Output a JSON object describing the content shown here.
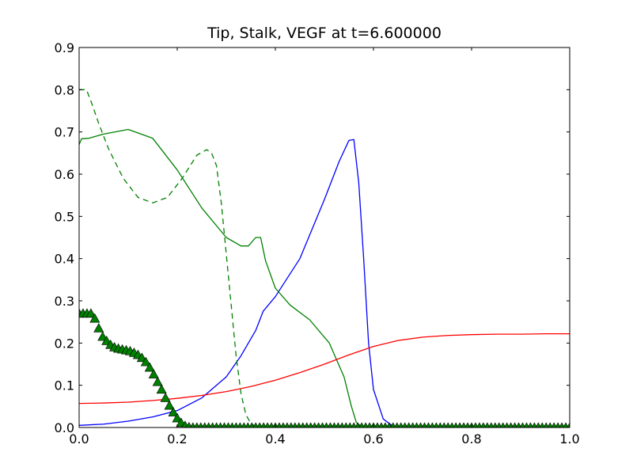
{
  "chart_data": {
    "type": "line",
    "title": "Tip, Stalk, VEGF at t=6.600000",
    "xlabel": "",
    "ylabel": "",
    "xlim": [
      0.0,
      1.0
    ],
    "ylim": [
      0.0,
      0.9
    ],
    "x_ticks": [
      "0.0",
      "0.2",
      "0.4",
      "0.6",
      "0.8",
      "1.0"
    ],
    "y_ticks": [
      "0.0",
      "0.1",
      "0.2",
      "0.3",
      "0.4",
      "0.5",
      "0.6",
      "0.7",
      "0.8",
      "0.9"
    ],
    "grid": false,
    "legend": "none",
    "series": [
      {
        "color": "#0000ff",
        "style": "solid",
        "x": [
          0.0,
          0.05,
          0.1,
          0.15,
          0.2,
          0.25,
          0.3,
          0.33,
          0.36,
          0.375,
          0.4,
          0.45,
          0.5,
          0.53,
          0.55,
          0.56,
          0.57,
          0.58,
          0.59,
          0.6,
          0.62,
          0.64,
          0.66,
          0.7,
          0.8,
          0.9,
          1.0
        ],
        "y": [
          0.005,
          0.008,
          0.015,
          0.025,
          0.04,
          0.07,
          0.12,
          0.17,
          0.23,
          0.275,
          0.31,
          0.4,
          0.54,
          0.63,
          0.68,
          0.682,
          0.58,
          0.4,
          0.2,
          0.09,
          0.02,
          0.003,
          0.0,
          0.0,
          0.0,
          0.0,
          0.0
        ]
      },
      {
        "color": "#008000",
        "style": "solid",
        "x": [
          0.0,
          0.005,
          0.02,
          0.05,
          0.1,
          0.15,
          0.2,
          0.25,
          0.3,
          0.33,
          0.345,
          0.36,
          0.37,
          0.38,
          0.4,
          0.43,
          0.47,
          0.51,
          0.54,
          0.555,
          0.565,
          0.575,
          0.6,
          0.7,
          0.8,
          0.9,
          1.0
        ],
        "y": [
          0.67,
          0.684,
          0.685,
          0.695,
          0.706,
          0.685,
          0.61,
          0.52,
          0.45,
          0.43,
          0.43,
          0.45,
          0.45,
          0.395,
          0.33,
          0.29,
          0.255,
          0.2,
          0.12,
          0.05,
          0.012,
          0.003,
          0.0,
          0.0,
          0.0,
          0.0,
          0.0
        ]
      },
      {
        "color": "#008000",
        "style": "dashed",
        "x": [
          0.0,
          0.015,
          0.025,
          0.04,
          0.06,
          0.09,
          0.12,
          0.15,
          0.18,
          0.21,
          0.24,
          0.26,
          0.27,
          0.28,
          0.29,
          0.3,
          0.31,
          0.32,
          0.33,
          0.34,
          0.35,
          0.36,
          0.37
        ],
        "y": [
          0.8,
          0.8,
          0.77,
          0.72,
          0.66,
          0.59,
          0.545,
          0.532,
          0.545,
          0.59,
          0.645,
          0.658,
          0.65,
          0.62,
          0.53,
          0.41,
          0.29,
          0.17,
          0.08,
          0.03,
          0.01,
          0.002,
          0.0
        ]
      },
      {
        "color": "#ff0000",
        "style": "solid",
        "x": [
          0.0,
          0.05,
          0.1,
          0.15,
          0.2,
          0.25,
          0.3,
          0.35,
          0.4,
          0.45,
          0.5,
          0.55,
          0.6,
          0.65,
          0.7,
          0.75,
          0.8,
          0.85,
          0.9,
          0.95,
          1.0
        ],
        "y": [
          0.057,
          0.058,
          0.06,
          0.064,
          0.069,
          0.076,
          0.085,
          0.097,
          0.112,
          0.13,
          0.15,
          0.172,
          0.192,
          0.206,
          0.214,
          0.218,
          0.22,
          0.221,
          0.221,
          0.222,
          0.222
        ]
      },
      {
        "color": "#008000",
        "style": "markers",
        "marker": "triangle",
        "x": [
          0.0,
          0.008,
          0.016,
          0.024,
          0.032,
          0.04,
          0.048,
          0.056,
          0.064,
          0.072,
          0.08,
          0.088,
          0.096,
          0.104,
          0.112,
          0.12,
          0.128,
          0.136,
          0.144,
          0.152,
          0.16,
          0.168,
          0.176,
          0.184,
          0.192,
          0.2,
          0.208,
          0.216,
          0.224,
          0.232,
          0.24,
          0.248,
          0.256,
          0.264,
          0.272,
          0.28,
          0.288,
          0.296,
          0.304,
          0.312,
          0.32,
          0.328,
          0.336,
          0.344,
          0.352,
          0.36,
          0.368,
          0.376,
          0.384,
          0.392,
          0.4,
          0.408,
          0.416,
          0.424,
          0.432,
          0.44,
          0.448,
          0.456,
          0.464,
          0.472,
          0.48,
          0.488,
          0.496,
          0.504,
          0.512,
          0.52,
          0.528,
          0.536,
          0.544,
          0.552,
          0.56,
          0.568,
          0.576,
          0.584,
          0.592,
          0.6,
          0.608,
          0.616,
          0.624,
          0.632,
          0.64,
          0.648,
          0.656,
          0.664,
          0.672,
          0.68,
          0.688,
          0.696,
          0.704,
          0.712,
          0.72,
          0.728,
          0.736,
          0.744,
          0.752,
          0.76,
          0.768,
          0.776,
          0.784,
          0.792,
          0.8,
          0.808,
          0.816,
          0.824,
          0.832,
          0.84,
          0.848,
          0.856,
          0.864,
          0.872,
          0.88,
          0.888,
          0.896,
          0.904,
          0.912,
          0.92,
          0.928,
          0.936,
          0.944,
          0.952,
          0.96,
          0.968,
          0.976,
          0.984,
          0.992,
          1.0
        ],
        "y": [
          0.27,
          0.27,
          0.27,
          0.27,
          0.258,
          0.235,
          0.215,
          0.205,
          0.196,
          0.19,
          0.187,
          0.185,
          0.183,
          0.181,
          0.177,
          0.172,
          0.165,
          0.155,
          0.142,
          0.126,
          0.108,
          0.09,
          0.07,
          0.052,
          0.036,
          0.022,
          0.011,
          0.004,
          0.001,
          0.0,
          0.0,
          0.0,
          0.0,
          0.0,
          0.0,
          0.0,
          0.0,
          0.0,
          0.0,
          0.0,
          0.0,
          0.0,
          0.0,
          0.0,
          0.0,
          0.0,
          0.0,
          0.0,
          0.0,
          0.0,
          0.0,
          0.0,
          0.0,
          0.0,
          0.0,
          0.0,
          0.0,
          0.0,
          0.0,
          0.0,
          0.0,
          0.0,
          0.0,
          0.0,
          0.0,
          0.0,
          0.0,
          0.0,
          0.0,
          0.0,
          0.0,
          0.0,
          0.0,
          0.0,
          0.0,
          0.0,
          0.0,
          0.0,
          0.0,
          0.0,
          0.0,
          0.0,
          0.0,
          0.0,
          0.0,
          0.0,
          0.0,
          0.0,
          0.0,
          0.0,
          0.0,
          0.0,
          0.0,
          0.0,
          0.0,
          0.0,
          0.0,
          0.0,
          0.0,
          0.0,
          0.0,
          0.0,
          0.0,
          0.0,
          0.0,
          0.0,
          0.0,
          0.0,
          0.0,
          0.0,
          0.0,
          0.0,
          0.0,
          0.0,
          0.0,
          0.0,
          0.0,
          0.0,
          0.0,
          0.0,
          0.0,
          0.0,
          0.0,
          0.0,
          0.0,
          0.0
        ]
      }
    ]
  }
}
